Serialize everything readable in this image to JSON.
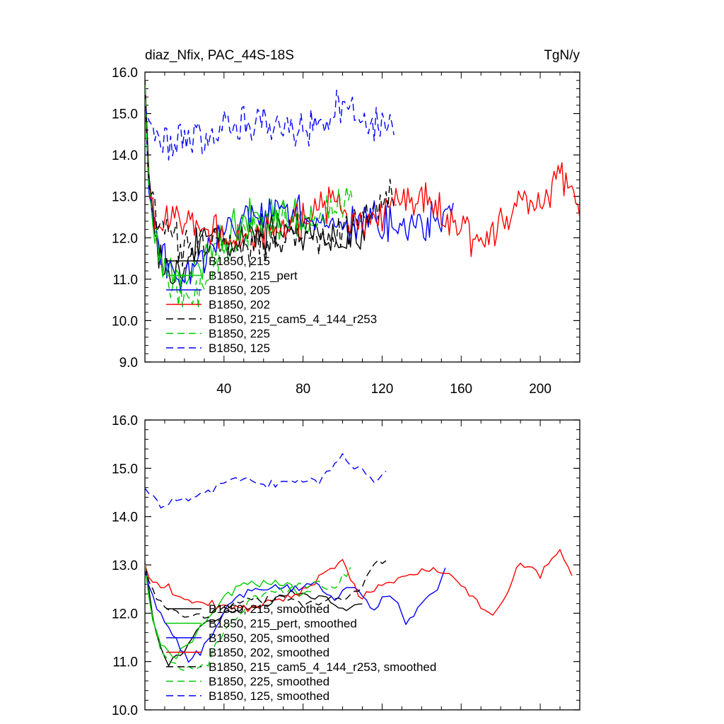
{
  "chart_data": [
    {
      "type": "line",
      "title": "diaz_Nfix, PAC_44S-18S",
      "units": "TgN/y",
      "xlabel": "",
      "ylabel": "",
      "xlim": [
        0,
        220
      ],
      "ylim": [
        9.0,
        16.0
      ],
      "xticks": [
        40,
        80,
        120,
        160,
        200
      ],
      "yticks": [
        9.0,
        10.0,
        11.0,
        12.0,
        13.0,
        14.0,
        15.0,
        16.0
      ],
      "ytick_labels": [
        "9.0",
        "10.0",
        "11.0",
        "12.0",
        "13.0",
        "14.0",
        "15.0",
        "16.0"
      ],
      "legend_position": "bottom-left",
      "series": [
        {
          "name": "B1850, 215",
          "color": "#000000",
          "dash": "solid",
          "x_end": 112,
          "keys": [
            [
              0,
              15.8
            ],
            [
              2,
              13.5
            ],
            [
              5,
              12.0
            ],
            [
              10,
              11.2
            ],
            [
              20,
              11.4
            ],
            [
              30,
              12.1
            ],
            [
              45,
              11.9
            ],
            [
              60,
              12.1
            ],
            [
              80,
              12.2
            ],
            [
              95,
              12.0
            ],
            [
              112,
              12.1
            ]
          ]
        },
        {
          "name": "B1850, 215_pert",
          "color": "#00cc00",
          "dash": "solid",
          "x_end": 85,
          "keys": [
            [
              0,
              15.6
            ],
            [
              2,
              13.2
            ],
            [
              6,
              11.8
            ],
            [
              12,
              11.1
            ],
            [
              20,
              11.0
            ],
            [
              30,
              11.5
            ],
            [
              40,
              12.0
            ],
            [
              50,
              12.5
            ],
            [
              60,
              12.6
            ],
            [
              70,
              12.5
            ],
            [
              85,
              12.3
            ]
          ]
        },
        {
          "name": "B1850, 205",
          "color": "#0000ff",
          "dash": "solid",
          "x_end": 156,
          "keys": [
            [
              0,
              15.5
            ],
            [
              2,
              13.0
            ],
            [
              6,
              11.8
            ],
            [
              12,
              11.2
            ],
            [
              20,
              11.0
            ],
            [
              30,
              11.6
            ],
            [
              40,
              12.2
            ],
            [
              55,
              12.5
            ],
            [
              70,
              12.6
            ],
            [
              85,
              12.5
            ],
            [
              100,
              12.3
            ],
            [
              115,
              12.5
            ],
            [
              130,
              12.1
            ],
            [
              145,
              12.4
            ],
            [
              156,
              12.8
            ]
          ]
        },
        {
          "name": "B1850, 202",
          "color": "#ff0000",
          "dash": "solid",
          "x_end": 220,
          "keys": [
            [
              0,
              15.6
            ],
            [
              2,
              13.2
            ],
            [
              6,
              12.5
            ],
            [
              12,
              12.6
            ],
            [
              25,
              12.3
            ],
            [
              40,
              12.0
            ],
            [
              60,
              12.1
            ],
            [
              80,
              12.4
            ],
            [
              95,
              12.9
            ],
            [
              110,
              12.2
            ],
            [
              125,
              12.8
            ],
            [
              140,
              12.9
            ],
            [
              150,
              12.6
            ],
            [
              160,
              12.2
            ],
            [
              170,
              11.8
            ],
            [
              180,
              12.3
            ],
            [
              190,
              13.2
            ],
            [
              200,
              12.8
            ],
            [
              210,
              13.3
            ],
            [
              215,
              13.4
            ],
            [
              220,
              12.5
            ]
          ]
        },
        {
          "name": "B1850, 215_cam5_4_144_r253",
          "color": "#000000",
          "dash": "dashed",
          "x_end": 127,
          "keys": [
            [
              0,
              15.6
            ],
            [
              2,
              13.2
            ],
            [
              6,
              12.6
            ],
            [
              12,
              12.2
            ],
            [
              20,
              11.7
            ],
            [
              35,
              11.9
            ],
            [
              50,
              11.7
            ],
            [
              65,
              11.9
            ],
            [
              80,
              12.1
            ],
            [
              95,
              12.0
            ],
            [
              110,
              12.4
            ],
            [
              120,
              12.9
            ],
            [
              127,
              13.0
            ]
          ]
        },
        {
          "name": "B1850, 225",
          "color": "#00cc00",
          "dash": "dashed",
          "x_end": 105,
          "keys": [
            [
              0,
              15.6
            ],
            [
              2,
              13.2
            ],
            [
              6,
              11.8
            ],
            [
              12,
              10.9
            ],
            [
              20,
              10.7
            ],
            [
              28,
              10.6
            ],
            [
              36,
              11.4
            ],
            [
              50,
              12.2
            ],
            [
              70,
              12.4
            ],
            [
              90,
              12.5
            ],
            [
              105,
              13.0
            ]
          ]
        },
        {
          "name": "B1850, 125",
          "color": "#0000ff",
          "dash": "dashed",
          "x_end": 126,
          "keys": [
            [
              0,
              15.2
            ],
            [
              2,
              14.8
            ],
            [
              6,
              14.4
            ],
            [
              12,
              14.3
            ],
            [
              20,
              14.4
            ],
            [
              35,
              14.5
            ],
            [
              50,
              14.7
            ],
            [
              65,
              14.7
            ],
            [
              80,
              14.7
            ],
            [
              90,
              14.8
            ],
            [
              98,
              15.3
            ],
            [
              105,
              15.0
            ],
            [
              115,
              14.7
            ],
            [
              126,
              14.9
            ]
          ]
        }
      ]
    },
    {
      "type": "line",
      "title": "",
      "xlabel": "",
      "ylabel": "",
      "xlim": [
        0,
        220
      ],
      "ylim": [
        10.0,
        16.0
      ],
      "yticks": [
        10.0,
        11.0,
        12.0,
        13.0,
        14.0,
        15.0,
        16.0
      ],
      "ytick_labels": [
        "10.0",
        "11.0",
        "12.0",
        "13.0",
        "14.0",
        "15.0",
        "16.0"
      ],
      "legend_position": "bottom-left",
      "series": [
        {
          "name": "B1850, 215, smoothed",
          "color": "#000000",
          "dash": "solid",
          "x_end": 110,
          "keys": [
            [
              0,
              13.05
            ],
            [
              3,
              12.2
            ],
            [
              7,
              11.3
            ],
            [
              12,
              11.0
            ],
            [
              20,
              11.2
            ],
            [
              30,
              11.8
            ],
            [
              45,
              12.0
            ],
            [
              60,
              12.2
            ],
            [
              75,
              12.4
            ],
            [
              90,
              12.3
            ],
            [
              100,
              12.1
            ],
            [
              110,
              12.2
            ]
          ]
        },
        {
          "name": "B1850, 215_pert, smoothed",
          "color": "#00cc00",
          "dash": "solid",
          "x_end": 85,
          "keys": [
            [
              0,
              13.0
            ],
            [
              3,
              12.0
            ],
            [
              8,
              11.3
            ],
            [
              15,
              11.1
            ],
            [
              22,
              11.3
            ],
            [
              30,
              11.8
            ],
            [
              40,
              12.3
            ],
            [
              50,
              12.7
            ],
            [
              60,
              12.6
            ],
            [
              70,
              12.6
            ],
            [
              80,
              12.4
            ],
            [
              85,
              12.5
            ]
          ]
        },
        {
          "name": "B1850, 205, smoothed",
          "color": "#0000ff",
          "dash": "solid",
          "x_end": 153,
          "keys": [
            [
              0,
              12.9
            ],
            [
              3,
              12.4
            ],
            [
              8,
              12.0
            ],
            [
              15,
              11.5
            ],
            [
              22,
              11.0
            ],
            [
              28,
              11.2
            ],
            [
              35,
              11.7
            ],
            [
              45,
              12.3
            ],
            [
              55,
              12.5
            ],
            [
              70,
              12.5
            ],
            [
              85,
              12.6
            ],
            [
              95,
              12.3
            ],
            [
              105,
              12.6
            ],
            [
              115,
              12.1
            ],
            [
              125,
              12.4
            ],
            [
              132,
              11.8
            ],
            [
              140,
              12.2
            ],
            [
              148,
              12.5
            ],
            [
              153,
              13.1
            ]
          ]
        },
        {
          "name": "B1850, 202, smoothed",
          "color": "#ff0000",
          "dash": "solid",
          "x_end": 216,
          "keys": [
            [
              0,
              13.0
            ],
            [
              3,
              12.6
            ],
            [
              10,
              12.6
            ],
            [
              18,
              12.3
            ],
            [
              30,
              12.2
            ],
            [
              45,
              12.1
            ],
            [
              60,
              12.2
            ],
            [
              75,
              12.3
            ],
            [
              90,
              12.8
            ],
            [
              100,
              13.1
            ],
            [
              108,
              12.3
            ],
            [
              120,
              12.6
            ],
            [
              135,
              12.8
            ],
            [
              145,
              12.9
            ],
            [
              158,
              12.7
            ],
            [
              168,
              12.2
            ],
            [
              176,
              11.9
            ],
            [
              183,
              12.4
            ],
            [
              190,
              13.1
            ],
            [
              200,
              12.8
            ],
            [
              210,
              13.3
            ],
            [
              214,
              13.0
            ],
            [
              216,
              12.8
            ]
          ]
        },
        {
          "name": "B1850, 215_cam5_4_144_r253, smoothed",
          "color": "#000000",
          "dash": "dashed",
          "x_end": 123,
          "keys": [
            [
              0,
              13.0
            ],
            [
              3,
              12.5
            ],
            [
              8,
              12.2
            ],
            [
              15,
              12.0
            ],
            [
              25,
              11.9
            ],
            [
              40,
              12.1
            ],
            [
              55,
              12.3
            ],
            [
              70,
              12.3
            ],
            [
              85,
              12.2
            ],
            [
              100,
              12.3
            ],
            [
              110,
              12.6
            ],
            [
              118,
              13.1
            ],
            [
              123,
              13.05
            ]
          ]
        },
        {
          "name": "B1850, 225, smoothed",
          "color": "#00cc00",
          "dash": "dashed",
          "x_end": 105,
          "keys": [
            [
              0,
              13.0
            ],
            [
              3,
              12.0
            ],
            [
              8,
              11.2
            ],
            [
              15,
              10.9
            ],
            [
              25,
              10.85
            ],
            [
              32,
              11.0
            ],
            [
              40,
              11.6
            ],
            [
              55,
              12.3
            ],
            [
              70,
              12.5
            ],
            [
              85,
              12.6
            ],
            [
              95,
              12.5
            ],
            [
              105,
              13.0
            ]
          ]
        },
        {
          "name": "B1850, 125, smoothed",
          "color": "#0000ff",
          "dash": "dashed",
          "x_end": 123,
          "keys": [
            [
              0,
              14.6
            ],
            [
              4,
              14.4
            ],
            [
              10,
              14.2
            ],
            [
              18,
              14.4
            ],
            [
              30,
              14.5
            ],
            [
              40,
              14.7
            ],
            [
              50,
              14.8
            ],
            [
              60,
              14.7
            ],
            [
              75,
              14.7
            ],
            [
              88,
              14.7
            ],
            [
              95,
              15.1
            ],
            [
              100,
              15.3
            ],
            [
              105,
              15.0
            ],
            [
              112,
              14.9
            ],
            [
              118,
              14.7
            ],
            [
              123,
              14.95
            ]
          ]
        }
      ]
    }
  ]
}
